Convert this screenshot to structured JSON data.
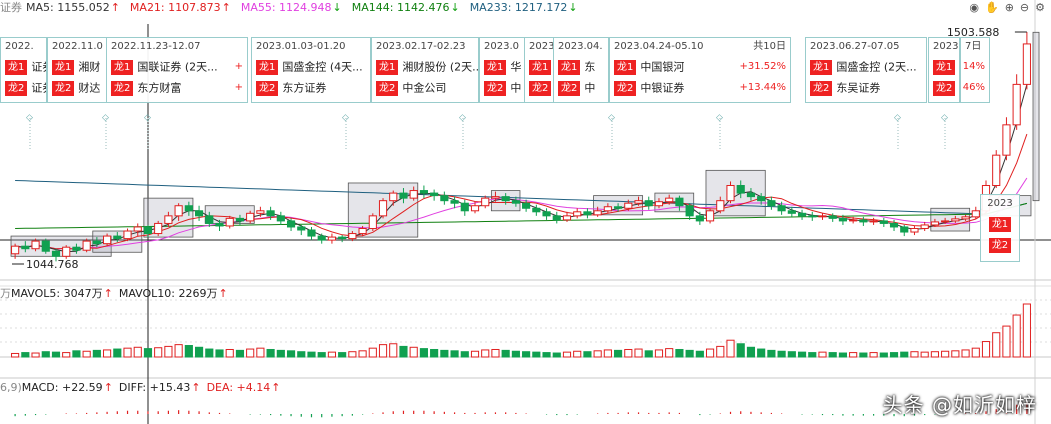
{
  "ma_bar": {
    "prefix": "证券",
    "items": [
      {
        "label": "MA5: 1155.052",
        "arrow": "↑",
        "color": "#333333",
        "arrow_color": "#e02020"
      },
      {
        "label": "MA21: 1107.873",
        "arrow": "↑",
        "color": "#e02020",
        "arrow_color": "#e02020"
      },
      {
        "label": "MA55: 1124.948",
        "arrow": "↓",
        "color": "#e040e0",
        "arrow_color": "#10a010"
      },
      {
        "label": "MA144: 1142.476",
        "arrow": "↓",
        "color": "#108010",
        "arrow_color": "#10a010"
      },
      {
        "label": "MA233: 1217.172",
        "arrow": "↓",
        "color": "#206080",
        "arrow_color": "#10a010"
      }
    ]
  },
  "vol_bar": {
    "prefix": "万",
    "items": [
      {
        "label": "MAVOL5: 3047万",
        "arrow": "↑",
        "color": "#222222",
        "arrow_color": "#e02020"
      },
      {
        "label": "MAVOL10: 2269万",
        "arrow": "↑",
        "color": "#222222",
        "arrow_color": "#e02020"
      }
    ]
  },
  "macd_bar": {
    "prefix": "6,9)",
    "items": [
      {
        "label": "MACD: +22.59",
        "arrow": "↑",
        "color": "#222222",
        "arrow_color": "#e02020"
      },
      {
        "label": "DIFF: +15.43",
        "arrow": "↑",
        "color": "#222222",
        "arrow_color": "#e02020"
      },
      {
        "label": "DEA: +4.14",
        "arrow": "↑",
        "color": "#e02020",
        "arrow_color": "#e02020"
      }
    ]
  },
  "toolbar_icons": [
    "eye-icon",
    "hand-icon",
    "plus-icon",
    "minus-icon",
    "settings-icon"
  ],
  "annotation_cards": [
    {
      "header": "2022.",
      "count": "",
      "rows": [
        {
          "tag": "龙1",
          "name": "证券",
          "pct": ""
        },
        {
          "tag": "龙2",
          "name": "证券",
          "pct": ""
        }
      ]
    },
    {
      "header": "2022.11.0",
      "count": "",
      "rows": [
        {
          "tag": "龙1",
          "name": "湘财",
          "pct": ""
        },
        {
          "tag": "龙2",
          "name": "财达",
          "pct": ""
        }
      ]
    },
    {
      "header": "2022.11.23-12.07",
      "count": "",
      "rows": [
        {
          "tag": "龙1",
          "name": "国联证券 (2天...",
          "pct": "+"
        },
        {
          "tag": "龙2",
          "name": "东方财富",
          "pct": "+"
        }
      ]
    },
    {
      "header": "2023.01.03-01.20",
      "count": "",
      "rows": [
        {
          "tag": "龙1",
          "name": "国盛金控 (4天...",
          "pct": ""
        },
        {
          "tag": "龙2",
          "name": "东方证券",
          "pct": ""
        }
      ]
    },
    {
      "header": "2023.02.17-02.23",
      "count": "",
      "rows": [
        {
          "tag": "龙1",
          "name": "湘财股份 (2天...",
          "pct": ""
        },
        {
          "tag": "龙2",
          "name": "中金公司",
          "pct": ""
        }
      ]
    },
    {
      "header": "2023.0",
      "count": "",
      "rows": [
        {
          "tag": "龙1",
          "name": "华",
          "pct": ""
        },
        {
          "tag": "龙2",
          "name": "中",
          "pct": ""
        }
      ]
    },
    {
      "header": "2023.",
      "count": "",
      "rows": [
        {
          "tag": "龙1",
          "name": "",
          "pct": ""
        },
        {
          "tag": "龙2",
          "name": "",
          "pct": ""
        }
      ]
    },
    {
      "header": "2023.04.",
      "count": "",
      "rows": [
        {
          "tag": "龙1",
          "name": "东",
          "pct": ""
        },
        {
          "tag": "龙2",
          "name": "中",
          "pct": ""
        }
      ]
    },
    {
      "header": "2023.04.24-05.10",
      "count": "共10日",
      "rows": [
        {
          "tag": "龙1",
          "name": "中国银河",
          "pct": "+31.52%"
        },
        {
          "tag": "龙2",
          "name": "中银证券",
          "pct": "+13.44%"
        }
      ]
    },
    {
      "header": "2023.06.27-07.05",
      "count": "",
      "rows": [
        {
          "tag": "龙1",
          "name": "国盛金控 (2天...",
          "pct": ""
        },
        {
          "tag": "龙2",
          "name": "东吴证券",
          "pct": ""
        }
      ]
    },
    {
      "header": "2023",
      "count": "",
      "rows": [
        {
          "tag": "龙1",
          "name": "",
          "pct": ""
        },
        {
          "tag": "龙2",
          "name": "",
          "pct": ""
        }
      ]
    },
    {
      "header": "7日",
      "count": "",
      "rows": [
        {
          "tag": "",
          "name": "",
          "pct": "14%"
        },
        {
          "tag": "",
          "name": "",
          "pct": "46%"
        }
      ]
    }
  ],
  "small_card": {
    "header": "2023",
    "rows": [
      {
        "tag": "龙1"
      },
      {
        "tag": "龙2"
      }
    ]
  },
  "watermark": "头条 @如沂如梓",
  "chart_data": {
    "type": "candlestick",
    "title": "",
    "price_high_label": "1503.588",
    "price_low_label": "1044.768",
    "price_range": [
      1044.768,
      1503.588
    ],
    "colors": {
      "up": "#e02020",
      "down": "#10a050",
      "ma5": "#333333",
      "ma21": "#e02020",
      "ma55": "#e040e0",
      "ma144": "#108010",
      "ma233": "#206080"
    },
    "candles": [
      [
        1065,
        1080,
        1055,
        1085
      ],
      [
        1080,
        1075,
        1068,
        1090
      ],
      [
        1075,
        1090,
        1070,
        1095
      ],
      [
        1090,
        1070,
        1065,
        1095
      ],
      [
        1070,
        1060,
        1050,
        1075
      ],
      [
        1060,
        1078,
        1055,
        1082
      ],
      [
        1078,
        1072,
        1065,
        1085
      ],
      [
        1072,
        1090,
        1068,
        1095
      ],
      [
        1090,
        1085,
        1078,
        1098
      ],
      [
        1085,
        1100,
        1080,
        1105
      ],
      [
        1100,
        1095,
        1088,
        1108
      ],
      [
        1095,
        1110,
        1090,
        1115
      ],
      [
        1110,
        1118,
        1100,
        1125
      ],
      [
        1118,
        1105,
        1098,
        1122
      ],
      [
        1105,
        1125,
        1100,
        1130
      ],
      [
        1125,
        1140,
        1118,
        1148
      ],
      [
        1140,
        1160,
        1130,
        1165
      ],
      [
        1160,
        1150,
        1140,
        1168
      ],
      [
        1150,
        1140,
        1130,
        1160
      ],
      [
        1140,
        1125,
        1118,
        1148
      ],
      [
        1125,
        1120,
        1110,
        1132
      ],
      [
        1120,
        1135,
        1115,
        1140
      ],
      [
        1135,
        1130,
        1122,
        1142
      ],
      [
        1130,
        1145,
        1125,
        1150
      ],
      [
        1145,
        1150,
        1138,
        1158
      ],
      [
        1150,
        1140,
        1132,
        1158
      ],
      [
        1140,
        1130,
        1122,
        1148
      ],
      [
        1130,
        1118,
        1110,
        1135
      ],
      [
        1118,
        1112,
        1102,
        1122
      ],
      [
        1112,
        1100,
        1092,
        1118
      ],
      [
        1100,
        1092,
        1085,
        1105
      ],
      [
        1092,
        1098,
        1085,
        1105
      ],
      [
        1098,
        1095,
        1088,
        1102
      ],
      [
        1095,
        1105,
        1090,
        1110
      ],
      [
        1105,
        1115,
        1100,
        1120
      ],
      [
        1115,
        1140,
        1110,
        1145
      ],
      [
        1140,
        1170,
        1135,
        1175
      ],
      [
        1170,
        1185,
        1160,
        1190
      ],
      [
        1185,
        1175,
        1165,
        1195
      ],
      [
        1175,
        1190,
        1170,
        1198
      ],
      [
        1190,
        1185,
        1175,
        1200
      ],
      [
        1185,
        1180,
        1170,
        1192
      ],
      [
        1180,
        1170,
        1162,
        1188
      ],
      [
        1170,
        1165,
        1155,
        1178
      ],
      [
        1165,
        1150,
        1140,
        1172
      ],
      [
        1150,
        1160,
        1145,
        1168
      ],
      [
        1160,
        1175,
        1155,
        1180
      ],
      [
        1175,
        1178,
        1168,
        1188
      ],
      [
        1178,
        1170,
        1162,
        1185
      ],
      [
        1170,
        1165,
        1158,
        1178
      ],
      [
        1165,
        1155,
        1148,
        1172
      ],
      [
        1155,
        1148,
        1140,
        1162
      ],
      [
        1148,
        1140,
        1132,
        1155
      ],
      [
        1140,
        1132,
        1125,
        1148
      ],
      [
        1132,
        1140,
        1128,
        1148
      ],
      [
        1140,
        1148,
        1135,
        1155
      ],
      [
        1148,
        1142,
        1135,
        1155
      ],
      [
        1142,
        1150,
        1138,
        1158
      ],
      [
        1150,
        1158,
        1145,
        1165
      ],
      [
        1158,
        1155,
        1148,
        1165
      ],
      [
        1155,
        1165,
        1150,
        1172
      ],
      [
        1165,
        1170,
        1160,
        1178
      ],
      [
        1170,
        1160,
        1152,
        1178
      ],
      [
        1160,
        1168,
        1155,
        1175
      ],
      [
        1168,
        1175,
        1162,
        1182
      ],
      [
        1175,
        1160,
        1150,
        1180
      ],
      [
        1160,
        1140,
        1132,
        1165
      ],
      [
        1140,
        1130,
        1122,
        1148
      ],
      [
        1130,
        1150,
        1125,
        1155
      ],
      [
        1150,
        1170,
        1145,
        1178
      ],
      [
        1170,
        1200,
        1165,
        1208
      ],
      [
        1200,
        1185,
        1175,
        1210
      ],
      [
        1185,
        1178,
        1170,
        1195
      ],
      [
        1178,
        1170,
        1162,
        1185
      ],
      [
        1170,
        1160,
        1152,
        1178
      ],
      [
        1160,
        1150,
        1142,
        1168
      ],
      [
        1150,
        1145,
        1138,
        1158
      ],
      [
        1145,
        1140,
        1132,
        1152
      ],
      [
        1140,
        1138,
        1130,
        1148
      ],
      [
        1138,
        1140,
        1132,
        1145
      ],
      [
        1140,
        1135,
        1128,
        1145
      ],
      [
        1135,
        1130,
        1122,
        1142
      ],
      [
        1130,
        1132,
        1125,
        1138
      ],
      [
        1132,
        1128,
        1120,
        1138
      ],
      [
        1128,
        1130,
        1122,
        1136
      ],
      [
        1130,
        1125,
        1118,
        1136
      ],
      [
        1125,
        1118,
        1110,
        1132
      ],
      [
        1118,
        1108,
        1100,
        1122
      ],
      [
        1108,
        1115,
        1102,
        1120
      ],
      [
        1115,
        1122,
        1110,
        1128
      ],
      [
        1122,
        1128,
        1118,
        1134
      ],
      [
        1128,
        1130,
        1124,
        1136
      ],
      [
        1130,
        1134,
        1126,
        1140
      ],
      [
        1134,
        1138,
        1130,
        1142
      ],
      [
        1138,
        1150,
        1134,
        1158
      ],
      [
        1150,
        1200,
        1145,
        1210
      ],
      [
        1200,
        1260,
        1195,
        1270
      ],
      [
        1260,
        1320,
        1250,
        1335
      ],
      [
        1320,
        1400,
        1310,
        1420
      ],
      [
        1400,
        1480,
        1390,
        1503.588
      ]
    ],
    "volume": [
      8,
      10,
      9,
      12,
      11,
      10,
      14,
      13,
      15,
      16,
      18,
      20,
      22,
      19,
      21,
      24,
      28,
      26,
      22,
      18,
      16,
      17,
      15,
      18,
      20,
      17,
      15,
      14,
      12,
      11,
      10,
      11,
      10,
      12,
      14,
      20,
      28,
      30,
      24,
      22,
      19,
      17,
      15,
      14,
      12,
      13,
      16,
      17,
      15,
      13,
      12,
      11,
      10,
      9,
      11,
      13,
      12,
      14,
      16,
      15,
      17,
      18,
      14,
      16,
      19,
      17,
      15,
      13,
      18,
      24,
      38,
      30,
      22,
      18,
      15,
      13,
      12,
      11,
      10,
      11,
      10,
      9,
      10,
      9,
      10,
      9,
      10,
      11,
      12,
      11,
      12,
      13,
      14,
      16,
      20,
      35,
      55,
      70,
      95,
      120
    ],
    "macd": [
      -4,
      -3,
      -2,
      -1,
      0,
      1,
      1,
      2,
      3,
      4,
      5,
      6,
      6,
      5,
      5,
      6,
      7,
      6,
      5,
      3,
      2,
      1,
      0,
      -1,
      -1,
      -2,
      -3,
      -4,
      -5,
      -6,
      -6,
      -5,
      -4,
      -3,
      -1,
      1,
      3,
      5,
      6,
      6,
      6,
      5,
      4,
      3,
      2,
      2,
      3,
      3,
      3,
      2,
      1,
      0,
      -1,
      -2,
      -2,
      -1,
      0,
      1,
      2,
      2,
      3,
      3,
      2,
      2,
      3,
      2,
      0,
      -2,
      -1,
      1,
      4,
      5,
      4,
      3,
      2,
      1,
      0,
      -1,
      -1,
      -2,
      -2,
      -3,
      -3,
      -3,
      -3,
      -3,
      -4,
      -4,
      -3,
      -2,
      -1,
      -1,
      0,
      1,
      2,
      5,
      9,
      13,
      17,
      22
    ]
  }
}
